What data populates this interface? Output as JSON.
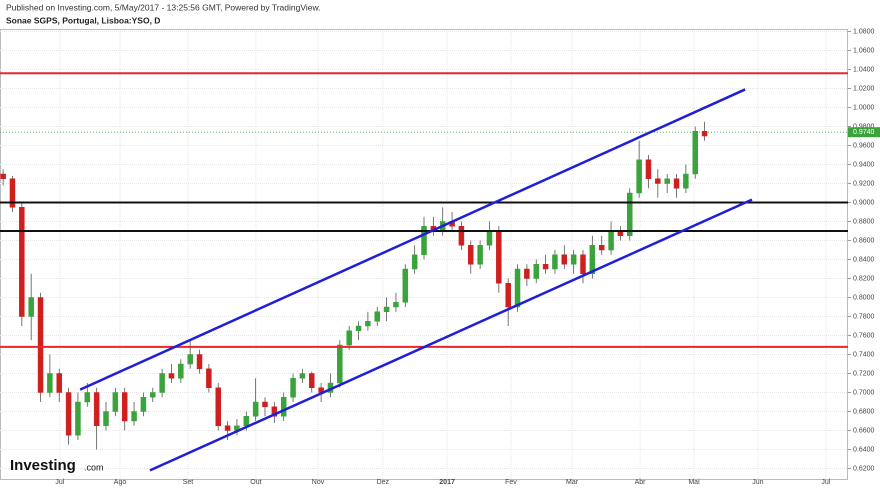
{
  "chart_data": {
    "type": "candlestick",
    "header": "Published on Investing.com, 5/May/2017 - 13:25:56 GMT, Powered by TradingView.",
    "title": "Sonae SGPS, Portugal, Lisboa:YSO, D",
    "watermark": "Investing",
    "watermark_suffix": ".com",
    "grid": true,
    "up_color": "#3ba33b",
    "down_color": "#cf2020",
    "xlim": [
      0,
      272
    ],
    "ylim": [
      0.61,
      1.09
    ],
    "xticks": [
      {
        "value": 19.2,
        "label": "Jul"
      },
      {
        "value": 38.5,
        "label": "Ago"
      },
      {
        "value": 60.3,
        "label": "Set"
      },
      {
        "value": 82.1,
        "label": "Out"
      },
      {
        "value": 102,
        "label": "Nov"
      },
      {
        "value": 122.8,
        "label": "Dez"
      },
      {
        "value": 143.4,
        "label": "2017"
      },
      {
        "value": 163.9,
        "label": "Fev"
      },
      {
        "value": 183.5,
        "label": "Mar"
      },
      {
        "value": 205.3,
        "label": "Abr"
      },
      {
        "value": 222.6,
        "label": "Mai"
      },
      {
        "value": 243.1,
        "label": "Jun"
      },
      {
        "value": 264.9,
        "label": "Jul"
      }
    ],
    "yticks": [
      {
        "value": 0.62,
        "label": "0.6200"
      },
      {
        "value": 0.64,
        "label": "0.6400"
      },
      {
        "value": 0.66,
        "label": "0.6600"
      },
      {
        "value": 0.68,
        "label": "0.6800"
      },
      {
        "value": 0.7,
        "label": "0.7000"
      },
      {
        "value": 0.72,
        "label": "0.7200"
      },
      {
        "value": 0.74,
        "label": "0.7400"
      },
      {
        "value": 0.76,
        "label": "0.7600"
      },
      {
        "value": 0.78,
        "label": "0.7800"
      },
      {
        "value": 0.8,
        "label": "0.8000"
      },
      {
        "value": 0.82,
        "label": "0.8200"
      },
      {
        "value": 0.84,
        "label": "0.8400"
      },
      {
        "value": 0.86,
        "label": "0.8600"
      },
      {
        "value": 0.88,
        "label": "0.8800"
      },
      {
        "value": 0.9,
        "label": "0.9000"
      },
      {
        "value": 0.92,
        "label": "0.9200"
      },
      {
        "value": 0.94,
        "label": "0.9400"
      },
      {
        "value": 0.96,
        "label": "0.9600"
      },
      {
        "value": 0.98,
        "label": "0.9800"
      },
      {
        "value": 1.0,
        "label": "1.0000"
      },
      {
        "value": 1.02,
        "label": "1.0200"
      },
      {
        "value": 1.04,
        "label": "1.0400"
      },
      {
        "value": 1.06,
        "label": "1.0600"
      },
      {
        "value": 1.08,
        "label": "1.0800"
      }
    ],
    "x": [
      1,
      4,
      7,
      10,
      13,
      16,
      19,
      22,
      25,
      28,
      31,
      34,
      37,
      40,
      43,
      46,
      49,
      52,
      55,
      58,
      61,
      64,
      67,
      70,
      73,
      76,
      79,
      82,
      85,
      88,
      91,
      94,
      97,
      100,
      103,
      106,
      109,
      112,
      115,
      118,
      121,
      124,
      127,
      130,
      133,
      136,
      139,
      142,
      145,
      148,
      151,
      154,
      157,
      160,
      163,
      166,
      169,
      172,
      175,
      178,
      181,
      184,
      187,
      190,
      193,
      196,
      199,
      202,
      205,
      208,
      211,
      214,
      217,
      220,
      223,
      226
    ],
    "open": [
      0.93,
      0.925,
      0.895,
      0.78,
      0.8,
      0.7,
      0.72,
      0.7,
      0.655,
      0.69,
      0.7,
      0.665,
      0.68,
      0.7,
      0.67,
      0.68,
      0.695,
      0.7,
      0.72,
      0.715,
      0.73,
      0.74,
      0.725,
      0.705,
      0.665,
      0.66,
      0.665,
      0.675,
      0.69,
      0.685,
      0.675,
      0.695,
      0.715,
      0.72,
      0.705,
      0.7,
      0.71,
      0.75,
      0.765,
      0.77,
      0.775,
      0.785,
      0.79,
      0.795,
      0.83,
      0.845,
      0.875,
      0.87,
      0.88,
      0.875,
      0.855,
      0.835,
      0.855,
      0.87,
      0.815,
      0.79,
      0.83,
      0.82,
      0.835,
      0.83,
      0.845,
      0.835,
      0.845,
      0.825,
      0.855,
      0.85,
      0.87,
      0.865,
      0.91,
      0.945,
      0.925,
      0.92,
      0.925,
      0.915,
      0.93,
      0.975
    ],
    "high": [
      0.935,
      0.928,
      0.9,
      0.825,
      0.805,
      0.74,
      0.725,
      0.705,
      0.7,
      0.71,
      0.705,
      0.69,
      0.705,
      0.705,
      0.69,
      0.7,
      0.705,
      0.725,
      0.73,
      0.735,
      0.755,
      0.745,
      0.73,
      0.71,
      0.67,
      0.672,
      0.68,
      0.715,
      0.695,
      0.69,
      0.7,
      0.72,
      0.725,
      0.722,
      0.71,
      0.72,
      0.755,
      0.77,
      0.775,
      0.785,
      0.79,
      0.8,
      0.805,
      0.835,
      0.855,
      0.885,
      0.885,
      0.895,
      0.89,
      0.88,
      0.86,
      0.86,
      0.88,
      0.875,
      0.82,
      0.835,
      0.835,
      0.84,
      0.845,
      0.85,
      0.855,
      0.85,
      0.85,
      0.865,
      0.865,
      0.88,
      0.875,
      0.915,
      0.965,
      0.95,
      0.935,
      0.93,
      0.93,
      0.94,
      0.98,
      0.985
    ],
    "low": [
      0.918,
      0.89,
      0.77,
      0.755,
      0.69,
      0.695,
      0.69,
      0.645,
      0.65,
      0.685,
      0.64,
      0.66,
      0.675,
      0.66,
      0.665,
      0.675,
      0.69,
      0.695,
      0.71,
      0.71,
      0.725,
      0.72,
      0.7,
      0.66,
      0.65,
      0.655,
      0.66,
      0.67,
      0.675,
      0.668,
      0.67,
      0.69,
      0.71,
      0.7,
      0.69,
      0.695,
      0.705,
      0.745,
      0.755,
      0.765,
      0.77,
      0.775,
      0.785,
      0.79,
      0.825,
      0.84,
      0.865,
      0.865,
      0.87,
      0.85,
      0.825,
      0.83,
      0.85,
      0.805,
      0.77,
      0.785,
      0.812,
      0.815,
      0.825,
      0.825,
      0.83,
      0.825,
      0.815,
      0.82,
      0.845,
      0.845,
      0.86,
      0.86,
      0.905,
      0.915,
      0.905,
      0.91,
      0.905,
      0.91,
      0.925,
      0.965
    ],
    "close": [
      0.925,
      0.895,
      0.78,
      0.8,
      0.7,
      0.72,
      0.7,
      0.655,
      0.69,
      0.7,
      0.665,
      0.68,
      0.7,
      0.67,
      0.68,
      0.695,
      0.7,
      0.72,
      0.715,
      0.73,
      0.74,
      0.725,
      0.705,
      0.665,
      0.66,
      0.665,
      0.675,
      0.69,
      0.685,
      0.675,
      0.695,
      0.715,
      0.72,
      0.705,
      0.7,
      0.71,
      0.75,
      0.765,
      0.77,
      0.775,
      0.785,
      0.79,
      0.795,
      0.83,
      0.845,
      0.875,
      0.87,
      0.88,
      0.875,
      0.855,
      0.835,
      0.855,
      0.87,
      0.815,
      0.79,
      0.83,
      0.82,
      0.835,
      0.83,
      0.845,
      0.835,
      0.845,
      0.825,
      0.855,
      0.85,
      0.87,
      0.865,
      0.91,
      0.945,
      0.925,
      0.92,
      0.925,
      0.915,
      0.93,
      0.975,
      0.97
    ],
    "hlines": [
      {
        "value": 1.036,
        "color": "#e8262b"
      },
      {
        "value": 0.748,
        "color": "#e8262b"
      },
      {
        "value": 0.9,
        "color": "#111111"
      },
      {
        "value": 0.87,
        "color": "#111111"
      }
    ],
    "trendlines": [
      {
        "x": [
          25.7,
          239
        ],
        "y": [
          0.703,
          1.019
        ],
        "color": "#1f1fd9"
      },
      {
        "x": [
          48.1,
          241.2
        ],
        "y": [
          0.618,
          0.903
        ],
        "color": "#1f1fd9"
      }
    ],
    "last_price": {
      "value": 0.974,
      "label": "0.9740"
    }
  }
}
